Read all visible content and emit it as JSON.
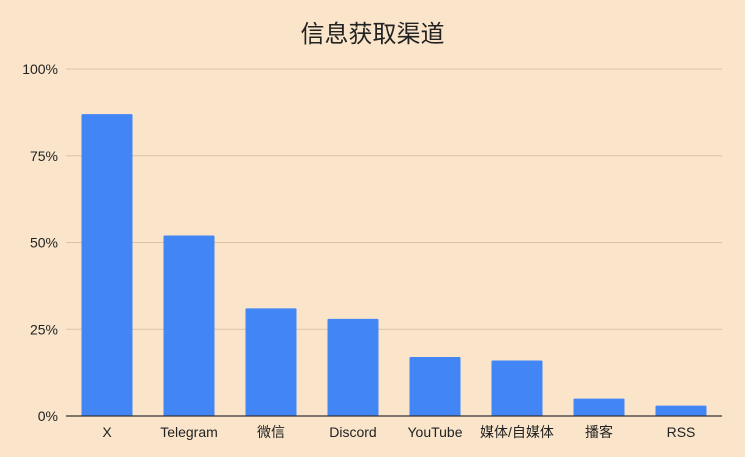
{
  "chart_data": {
    "type": "bar",
    "title": "信息获取渠道",
    "categories": [
      "X",
      "Telegram",
      "微信",
      "Discord",
      "YouTube",
      "媒体/自媒体",
      "播客",
      "RSS"
    ],
    "values": [
      87,
      52,
      31,
      28,
      17,
      16,
      5,
      3
    ],
    "ylim": [
      0,
      100
    ],
    "yticks": [
      "0%",
      "25%",
      "50%",
      "75%",
      "100%"
    ],
    "ytick_values": [
      0,
      25,
      50,
      75,
      100
    ],
    "xlabel": "",
    "ylabel": "",
    "grid": true,
    "legend": "none",
    "colors": {
      "bar": "#4285f4",
      "grid": "#d9c3a6",
      "axis": "#333333",
      "background": "#fae5cb"
    }
  }
}
